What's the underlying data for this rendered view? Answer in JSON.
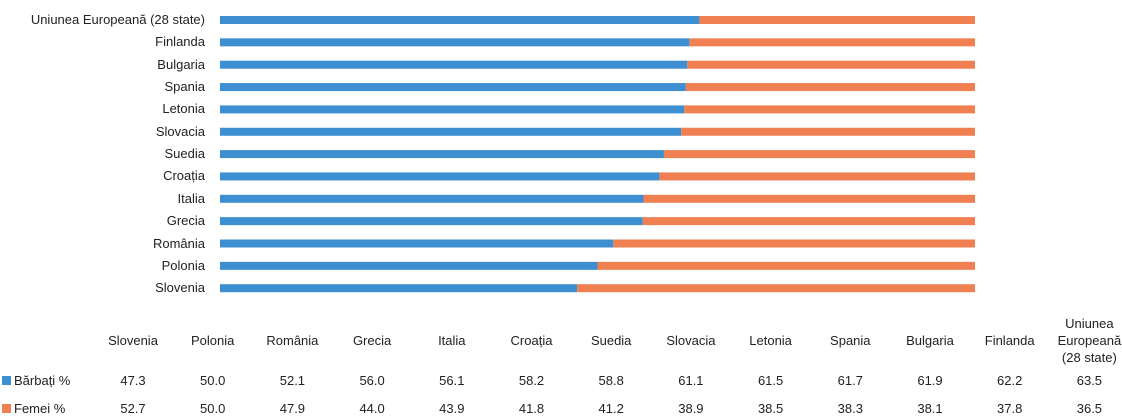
{
  "chart_data": {
    "type": "bar",
    "orientation": "horizontal",
    "stacked": true,
    "categories": [
      "Slovenia",
      "Polonia",
      "România",
      "Grecia",
      "Italia",
      "Croația",
      "Suedia",
      "Slovacia",
      "Letonia",
      "Spania",
      "Bulgaria",
      "Finlanda",
      "Uniunea Europeană (28 state)"
    ],
    "series": [
      {
        "name": "Bărbați %",
        "color": "#3d8fd1",
        "values": [
          47.3,
          50.0,
          52.1,
          56.0,
          56.1,
          58.2,
          58.8,
          61.1,
          61.5,
          61.7,
          61.9,
          62.2,
          63.5
        ],
        "value_labels": [
          "47.3",
          "50.0",
          "52.1",
          "56.0",
          "56.1",
          "58.2",
          "58.8",
          "61.1",
          "61.5",
          "61.7",
          "61.9",
          "62.2",
          "63.5"
        ]
      },
      {
        "name": "Femei %",
        "color": "#f07f52",
        "values": [
          52.7,
          50.0,
          47.9,
          44.0,
          43.9,
          41.8,
          41.2,
          38.9,
          38.5,
          38.3,
          38.1,
          37.8,
          36.5
        ],
        "value_labels": [
          "52.7",
          "50.0",
          "47.9",
          "44.0",
          "43.9",
          "41.8",
          "41.2",
          "38.9",
          "38.5",
          "38.3",
          "38.1",
          "37.8",
          "36.5"
        ]
      }
    ]
  }
}
